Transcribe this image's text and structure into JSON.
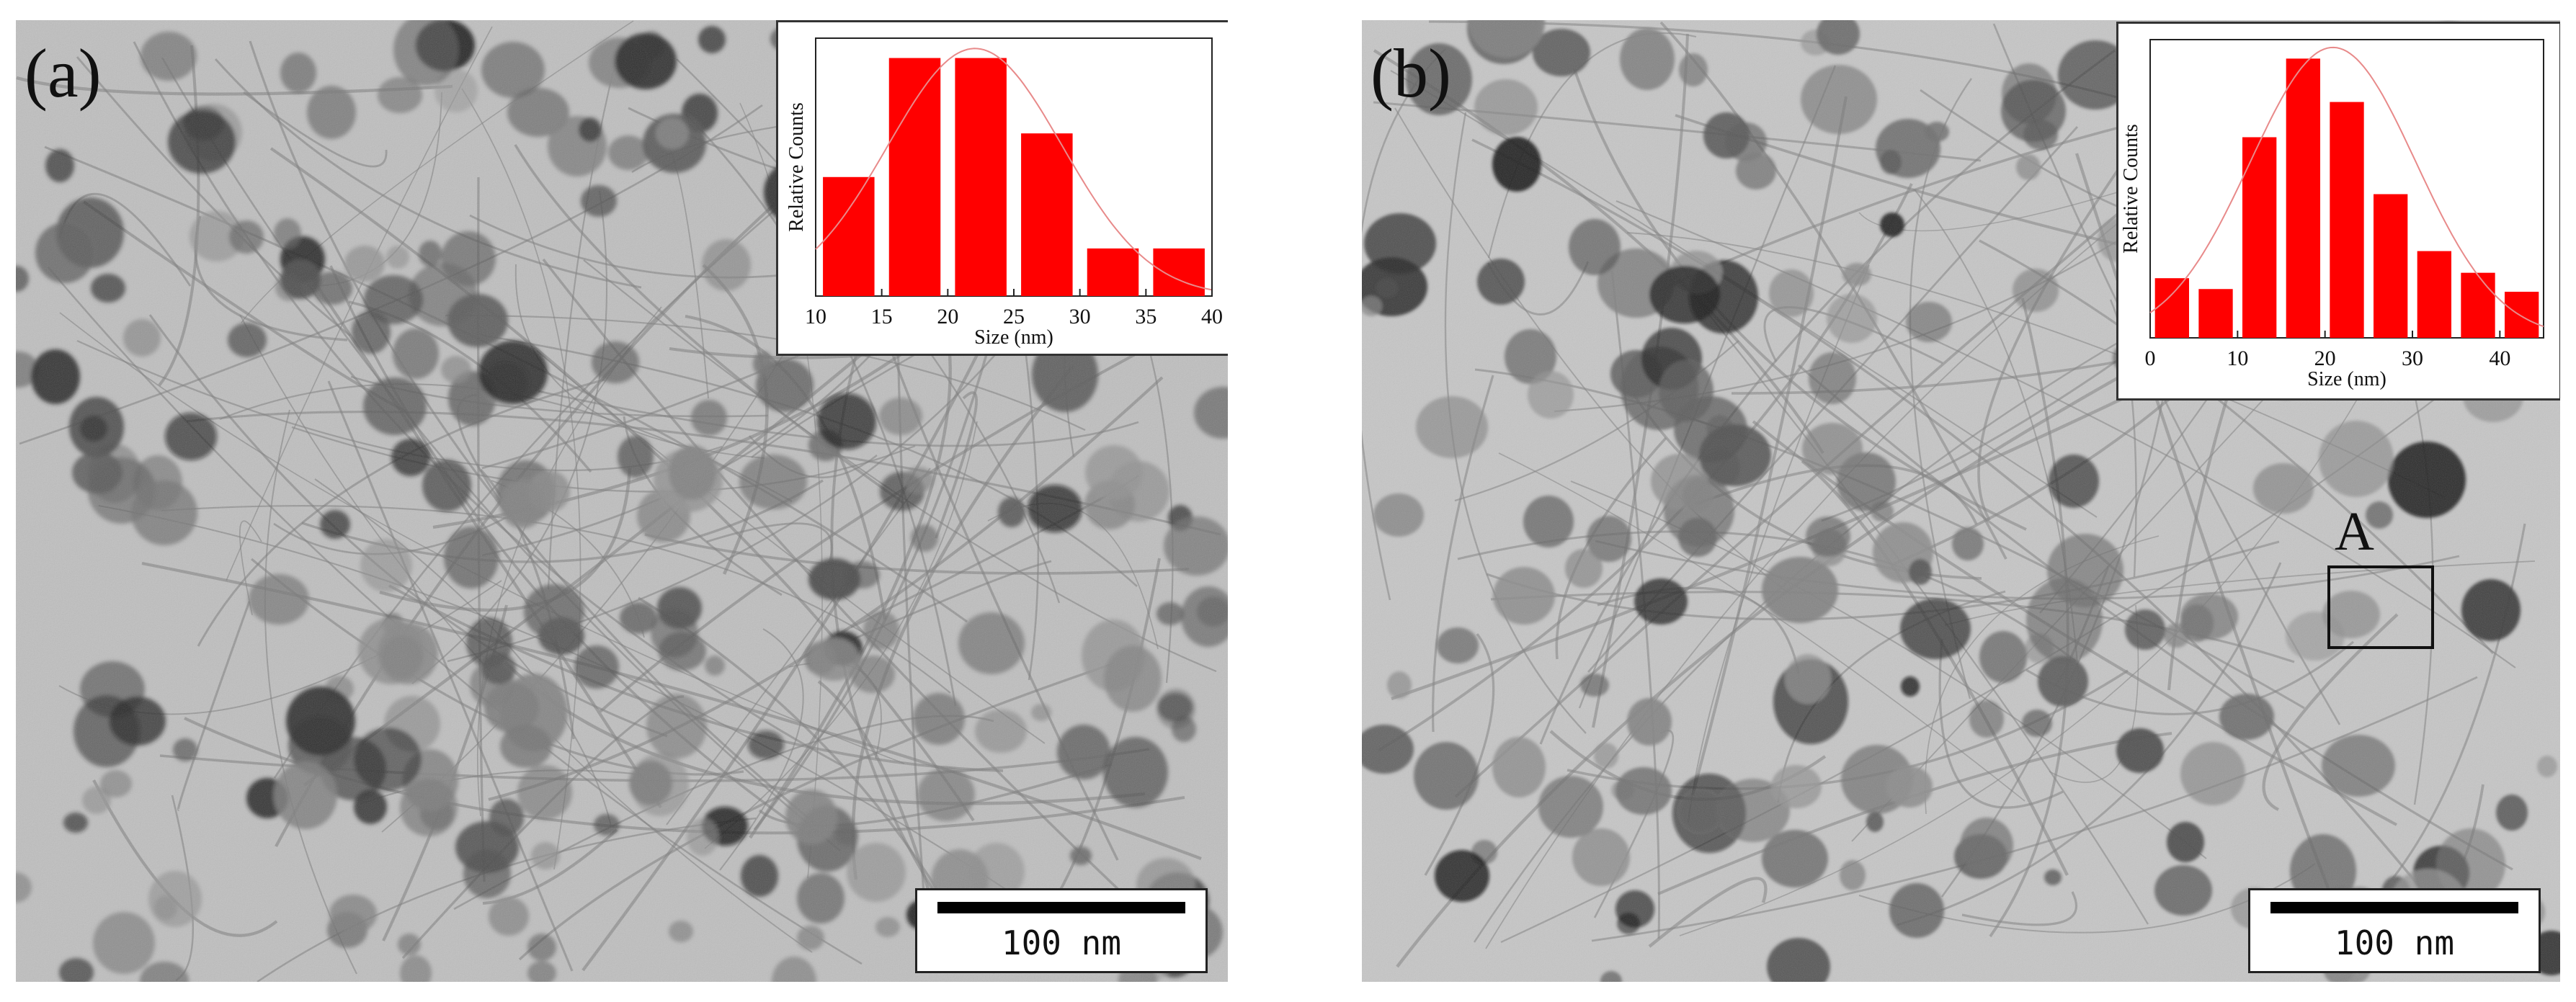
{
  "panels": [
    {
      "label": "(a)",
      "scale_bar": "100 nm",
      "histogram": {
        "ylabel": "Relative Counts",
        "xlabel": "Size (nm)",
        "xticks": [
          "10",
          "15",
          "20",
          "25",
          "30",
          "35",
          "40"
        ],
        "xlim": [
          10,
          40
        ],
        "bars": [
          {
            "x": 12.5,
            "count": 3
          },
          {
            "x": 17.5,
            "count": 6
          },
          {
            "x": 22.5,
            "count": 6
          },
          {
            "x": 27.5,
            "count": 4.1
          },
          {
            "x": 32.5,
            "count": 1.2
          },
          {
            "x": 37.5,
            "count": 1.2
          }
        ],
        "ymax": 6.5,
        "bar_color": "#ff0000",
        "fit_color": "#e88a8a"
      }
    },
    {
      "label": "(b)",
      "scale_bar": "100 nm",
      "region_label": "A",
      "histogram": {
        "ylabel": "Relative Counts",
        "xlabel": "Size (nm)",
        "xticks": [
          "0",
          "10",
          "20",
          "30",
          "40"
        ],
        "xlim": [
          0,
          45
        ],
        "bars": [
          {
            "x": 2.5,
            "count": 2.2
          },
          {
            "x": 7.5,
            "count": 1.8
          },
          {
            "x": 12.5,
            "count": 7.4
          },
          {
            "x": 17.5,
            "count": 10.3
          },
          {
            "x": 22.5,
            "count": 8.7
          },
          {
            "x": 27.5,
            "count": 5.3
          },
          {
            "x": 32.5,
            "count": 3.2
          },
          {
            "x": 37.5,
            "count": 2.4
          },
          {
            "x": 42.5,
            "count": 1.7
          }
        ],
        "ymax": 11,
        "bar_color": "#ff0000",
        "fit_color": "#e88a8a"
      }
    }
  ]
}
